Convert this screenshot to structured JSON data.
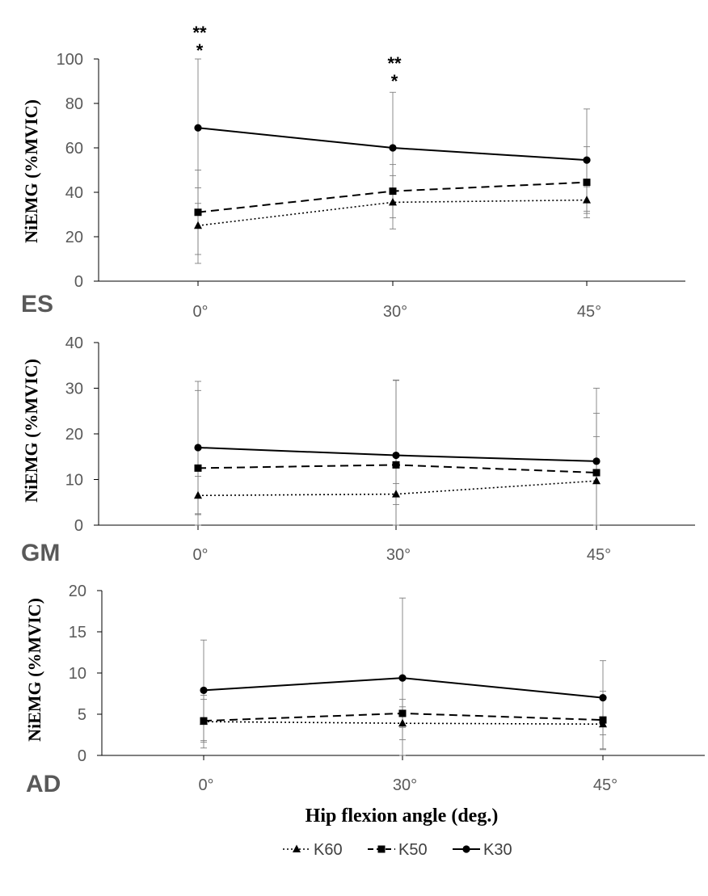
{
  "chart_data": {
    "type": "line",
    "xlabel": "Hip flexion angle (deg.)",
    "categories": [
      "0°",
      "30°",
      "45°"
    ],
    "legend": [
      {
        "name": "K60",
        "line": "dotted",
        "marker": "triangle"
      },
      {
        "name": "K50",
        "line": "dashed",
        "marker": "square"
      },
      {
        "name": "K30",
        "line": "solid",
        "marker": "circle"
      }
    ],
    "panels": [
      {
        "label": "ES",
        "ylabel": "NiEMG (%MVIC)",
        "ylim": [
          0,
          100
        ],
        "yticks": [
          "0",
          "20",
          "40",
          "60",
          "80",
          "100"
        ],
        "series": [
          {
            "name": "K60",
            "values": [
              25,
              35.5,
              36.5
            ],
            "err": [
              17,
              12,
              6
            ]
          },
          {
            "name": "K50",
            "values": [
              31,
              40.5,
              44.5
            ],
            "err": [
              19,
              12,
              16
            ]
          },
          {
            "name": "K30",
            "values": [
              69,
              60,
              54.5
            ],
            "err": [
              34,
              25,
              23
            ]
          }
        ],
        "annotations": [
          {
            "x": "0°",
            "lines": [
              "**",
              "*"
            ]
          },
          {
            "x": "30°",
            "lines": [
              "**",
              "*"
            ]
          }
        ]
      },
      {
        "label": "GM",
        "ylabel": "NiEMG (%MVIC)",
        "ylim": [
          0,
          40
        ],
        "yticks": [
          "0",
          "10",
          "20",
          "30",
          "40"
        ],
        "series": [
          {
            "name": "K60",
            "values": [
              6.5,
              6.8,
              9.7
            ],
            "err": [
              4.2,
              2.3,
              9.7
            ]
          },
          {
            "name": "K50",
            "values": [
              12.5,
              13.2,
              11.5
            ],
            "err": [
              17,
              18.5,
              13
            ]
          },
          {
            "name": "K30",
            "values": [
              17,
              15.3,
              14
            ],
            "err": [
              14.5,
              16.5,
              16
            ]
          }
        ],
        "annotations": []
      },
      {
        "label": "AD",
        "ylabel": "NiEMG (%MVIC)",
        "ylim": [
          0,
          20
        ],
        "yticks": [
          "0",
          "5",
          "10",
          "15",
          "20"
        ],
        "series": [
          {
            "name": "K60",
            "values": [
              4.1,
              3.9,
              3.8
            ],
            "err": [
              3.2,
              2,
              3.1
            ]
          },
          {
            "name": "K50",
            "values": [
              4.2,
              5.1,
              4.3
            ],
            "err": [
              2.6,
              1.7,
              3.5
            ]
          },
          {
            "name": "K30",
            "values": [
              7.9,
              9.4,
              7
            ],
            "err": [
              6.1,
              9.7,
              4.5
            ]
          }
        ],
        "annotations": []
      }
    ]
  }
}
